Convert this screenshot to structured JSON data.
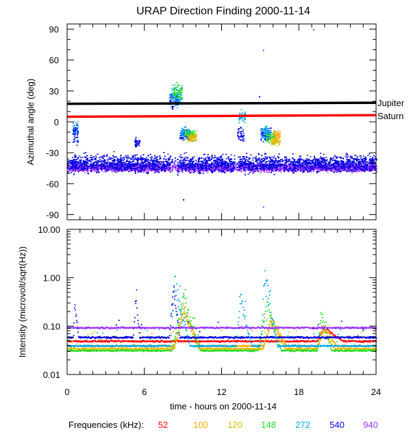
{
  "chart_data": {
    "type": "scatter",
    "title": "URAP Direction Finding  2000-11-14",
    "xlabel": "time - hours on 2000-11-14",
    "xlim": [
      0,
      24
    ],
    "x_tick_labels": [
      "0",
      "6",
      "12",
      "18",
      "24"
    ],
    "panels": [
      {
        "name": "azimuth",
        "ylabel": "Azimuthal angle (deg)",
        "ylim": [
          -95,
          95
        ],
        "y_tick_labels": [
          "90",
          "60",
          "30",
          "0",
          "-30",
          "-60",
          "-90"
        ],
        "reference_lines": [
          {
            "name": "Jupiter",
            "color": "#000000",
            "y": [
              17.5,
              18.5
            ]
          },
          {
            "name": "Saturn",
            "color": "#ff0000",
            "y": [
              5,
              6.5
            ]
          }
        ],
        "scatter_groups": [
          {
            "series": "940",
            "x_range": [
              0,
              24
            ],
            "y_center": -44,
            "y_spread": 6,
            "note": "continuous band"
          },
          {
            "series": "540",
            "x_range": [
              0,
              24
            ],
            "y_center": -40,
            "y_spread": 12,
            "note": "continuous band"
          },
          {
            "series": "272",
            "x_range": [
              0.4,
              0.8
            ],
            "y_center": -8,
            "y_spread": 15
          },
          {
            "series": "540",
            "x_range": [
              0.4,
              0.8
            ],
            "y_center": -12,
            "y_spread": 18
          },
          {
            "series": "540",
            "x_range": [
              5.2,
              5.6
            ],
            "y_center": -20,
            "y_spread": 8
          },
          {
            "series": "540",
            "x_range": [
              7.9,
              8.6
            ],
            "y_center": 22,
            "y_spread": 10
          },
          {
            "series": "272",
            "x_range": [
              7.9,
              8.9
            ],
            "y_center": 25,
            "y_spread": 14
          },
          {
            "series": "148",
            "x_range": [
              8.2,
              8.9
            ],
            "y_center": 30,
            "y_spread": 10
          },
          {
            "series": "540",
            "x_range": [
              8.7,
              9.5
            ],
            "y_center": -12,
            "y_spread": 8
          },
          {
            "series": "272",
            "x_range": [
              8.8,
              9.6
            ],
            "y_center": -10,
            "y_spread": 8
          },
          {
            "series": "148",
            "x_range": [
              9.1,
              10.0
            ],
            "y_center": -12,
            "y_spread": 8
          },
          {
            "series": "120",
            "x_range": [
              9.3,
              10.0
            ],
            "y_center": -15,
            "y_spread": 6
          },
          {
            "series": "540",
            "x_range": [
              13.2,
              13.7
            ],
            "y_center": -12,
            "y_spread": 10
          },
          {
            "series": "272",
            "x_range": [
              13.3,
              13.8
            ],
            "y_center": 5,
            "y_spread": 8
          },
          {
            "series": "540",
            "x_range": [
              15.0,
              15.8
            ],
            "y_center": -12,
            "y_spread": 10
          },
          {
            "series": "272",
            "x_range": [
              15.0,
              15.8
            ],
            "y_center": -10,
            "y_spread": 10
          },
          {
            "series": "148",
            "x_range": [
              15.4,
              16.2
            ],
            "y_center": -15,
            "y_spread": 8
          },
          {
            "series": "120",
            "x_range": [
              15.8,
              16.5
            ],
            "y_center": -18,
            "y_spread": 6
          },
          {
            "series": "100",
            "x_range": [
              16.0,
              16.5
            ],
            "y_center": -12,
            "y_spread": 6
          }
        ],
        "isolated_points": [
          {
            "series": "940",
            "x": 19.1,
            "y": 90
          },
          {
            "series": "940",
            "x": 15.2,
            "y": 70
          },
          {
            "series": "940",
            "x": 15.2,
            "y": -82
          },
          {
            "series": "540",
            "x": 9.0,
            "y": -75
          },
          {
            "series": "148",
            "x": 12.6,
            "y": 18
          },
          {
            "series": "540",
            "x": 14.9,
            "y": 25
          }
        ]
      },
      {
        "name": "intensity",
        "ylabel": "Intensity (microvolt/sqrt(Hz))",
        "scale": "log",
        "ylim": [
          0.01,
          10
        ],
        "y_tick_labels": [
          "10.00",
          "1.00",
          "0.10",
          "0.01"
        ],
        "series": [
          {
            "name": "52",
            "baseline": 0.05,
            "bursts": [
              {
                "time": 19.8,
                "peak": 0.1,
                "rise": 0.4,
                "decay": 1.6
              }
            ]
          },
          {
            "name": "100",
            "baseline": 0.04,
            "bursts": [
              {
                "time": 9.0,
                "peak": 0.2,
                "rise": 0.7,
                "decay": 1.3
              },
              {
                "time": 15.8,
                "peak": 0.15,
                "rise": 0.6,
                "decay": 1.2
              },
              {
                "time": 19.9,
                "peak": 0.1,
                "rise": 0.4,
                "decay": 1.0
              }
            ]
          },
          {
            "name": "120",
            "baseline": 0.035,
            "bursts": [
              {
                "time": 9.0,
                "peak": 0.3,
                "rise": 0.7,
                "decay": 1.2
              },
              {
                "time": 15.8,
                "peak": 0.15,
                "rise": 0.6,
                "decay": 1.1
              },
              {
                "time": 19.8,
                "peak": 0.1,
                "rise": 0.4,
                "decay": 0.9
              }
            ]
          },
          {
            "name": "148",
            "baseline": 0.032,
            "bursts": [
              {
                "time": 9.0,
                "peak": 0.4,
                "rise": 0.9,
                "decay": 1.3
              },
              {
                "time": 15.5,
                "peak": 0.3,
                "rise": 0.7,
                "decay": 1.1
              },
              {
                "time": 19.7,
                "peak": 0.2,
                "rise": 0.3,
                "decay": 0.8
              }
            ]
          },
          {
            "name": "272",
            "baseline": 0.04,
            "bursts": [
              {
                "time": 8.3,
                "peak": 1.0,
                "rise": 0.3,
                "decay": 1.2
              },
              {
                "time": 13.4,
                "peak": 0.5,
                "rise": 0.3,
                "decay": 0.9
              },
              {
                "time": 15.3,
                "peak": 1.5,
                "rise": 0.3,
                "decay": 1.0
              }
            ]
          },
          {
            "name": "540",
            "baseline": 0.06,
            "bursts": [
              {
                "time": 0.55,
                "peak": 0.35,
                "rise": 0.1,
                "decay": 0.3
              },
              {
                "time": 5.3,
                "peak": 0.5,
                "rise": 0.2,
                "decay": 0.3
              },
              {
                "time": 8.2,
                "peak": 0.9,
                "rise": 0.3,
                "decay": 0.5
              }
            ]
          },
          {
            "name": "940",
            "baseline": 0.095,
            "bursts": []
          }
        ]
      }
    ],
    "legend": {
      "label": "Frequencies (kHz):",
      "placement": "bottom",
      "entries": [
        {
          "name": "52",
          "color": "#ff0000"
        },
        {
          "name": "100",
          "color": "#ffa500"
        },
        {
          "name": "120",
          "color": "#e5b800"
        },
        {
          "name": "148",
          "color": "#22dd22"
        },
        {
          "name": "272",
          "color": "#00aaee"
        },
        {
          "name": "540",
          "color": "#0000dd"
        },
        {
          "name": "940",
          "color": "#9933ff"
        }
      ]
    }
  }
}
